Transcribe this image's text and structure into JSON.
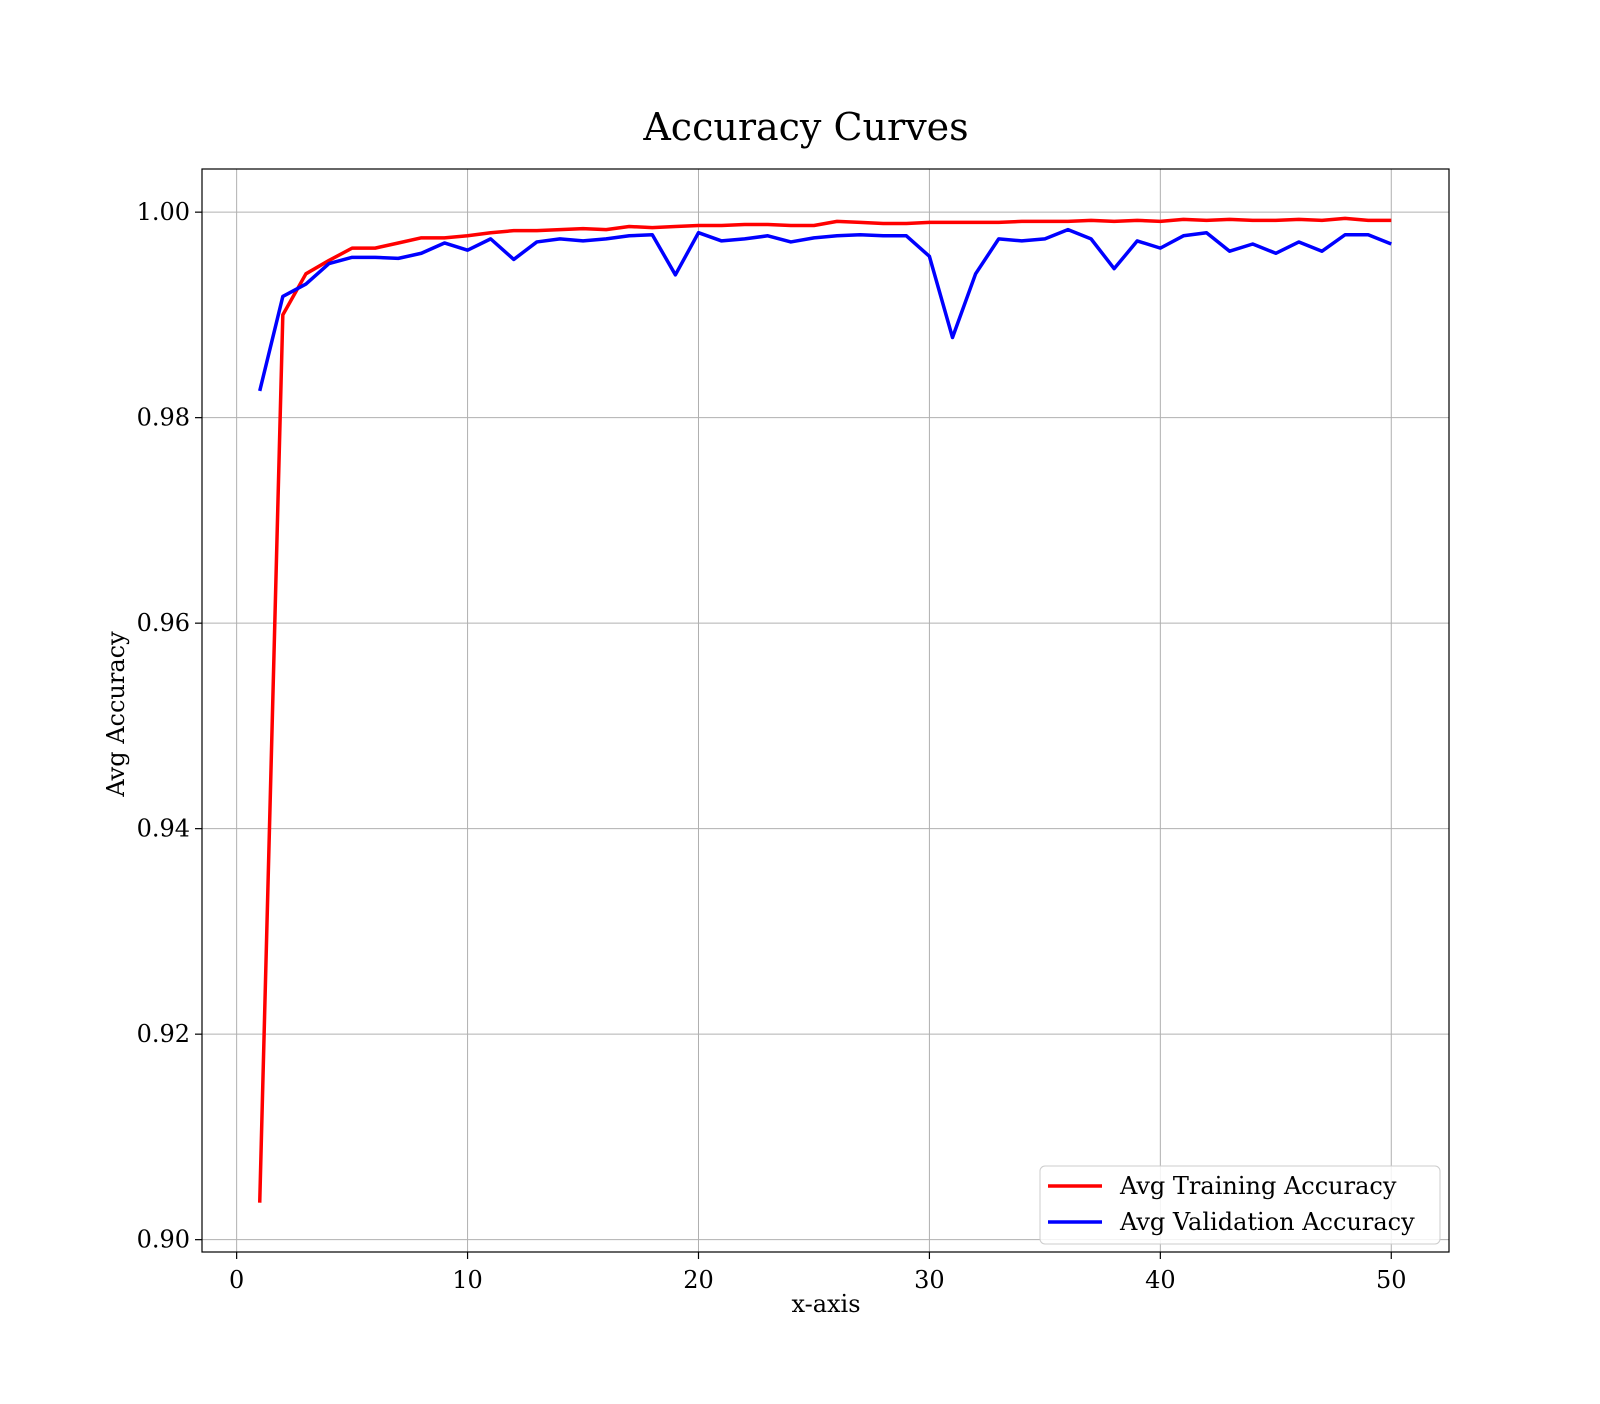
{
  "chart_data": {
    "type": "line",
    "title": "Accuracy Curves",
    "xlabel": "x-axis",
    "ylabel": "Avg Accuracy",
    "xlim": [
      -1.5,
      52.5
    ],
    "ylim": [
      0.8988,
      1.0042
    ],
    "xticks": [
      0,
      10,
      20,
      30,
      40,
      50
    ],
    "yticks": [
      0.9,
      0.92,
      0.94,
      0.96,
      0.98,
      1.0
    ],
    "xtick_labels": [
      "0",
      "10",
      "20",
      "30",
      "40",
      "50"
    ],
    "ytick_labels": [
      "0.90",
      "0.92",
      "0.94",
      "0.96",
      "0.98",
      "1.00"
    ],
    "grid": true,
    "legend": "lower-right",
    "x": [
      1,
      2,
      3,
      4,
      5,
      6,
      7,
      8,
      9,
      10,
      11,
      12,
      13,
      14,
      15,
      16,
      17,
      18,
      19,
      20,
      21,
      22,
      23,
      24,
      25,
      26,
      27,
      28,
      29,
      30,
      31,
      32,
      33,
      34,
      35,
      36,
      37,
      38,
      39,
      40,
      41,
      42,
      43,
      44,
      45,
      46,
      47,
      48,
      49,
      50
    ],
    "series": [
      {
        "name": "Avg Training Accuracy",
        "color": "#ff0000",
        "values": [
          0.9036,
          0.99,
          0.994,
          0.9953,
          0.9965,
          0.9965,
          0.997,
          0.9975,
          0.9975,
          0.9977,
          0.998,
          0.9982,
          0.9982,
          0.9983,
          0.9984,
          0.9983,
          0.9986,
          0.9985,
          0.9986,
          0.9987,
          0.9987,
          0.9988,
          0.9988,
          0.9987,
          0.9987,
          0.9991,
          0.999,
          0.9989,
          0.9989,
          0.999,
          0.999,
          0.999,
          0.999,
          0.9991,
          0.9991,
          0.9991,
          0.9992,
          0.9991,
          0.9992,
          0.9991,
          0.9993,
          0.9992,
          0.9993,
          0.9992,
          0.9992,
          0.9993,
          0.9992,
          0.9994,
          0.9992,
          0.9992
        ]
      },
      {
        "name": "Avg Validation Accuracy",
        "color": "#0000ff",
        "values": [
          0.9826,
          0.9918,
          0.993,
          0.995,
          0.9956,
          0.9956,
          0.9955,
          0.996,
          0.997,
          0.9963,
          0.9974,
          0.9954,
          0.9971,
          0.9974,
          0.9972,
          0.9974,
          0.9977,
          0.9978,
          0.9939,
          0.998,
          0.9972,
          0.9974,
          0.9977,
          0.9971,
          0.9975,
          0.9977,
          0.9978,
          0.9977,
          0.9977,
          0.9957,
          0.9878,
          0.994,
          0.9974,
          0.9972,
          0.9974,
          0.9983,
          0.9974,
          0.9945,
          0.9972,
          0.9965,
          0.9977,
          0.998,
          0.9962,
          0.9969,
          0.996,
          0.9971,
          0.9962,
          0.9978,
          0.9978,
          0.9969
        ]
      }
    ]
  }
}
